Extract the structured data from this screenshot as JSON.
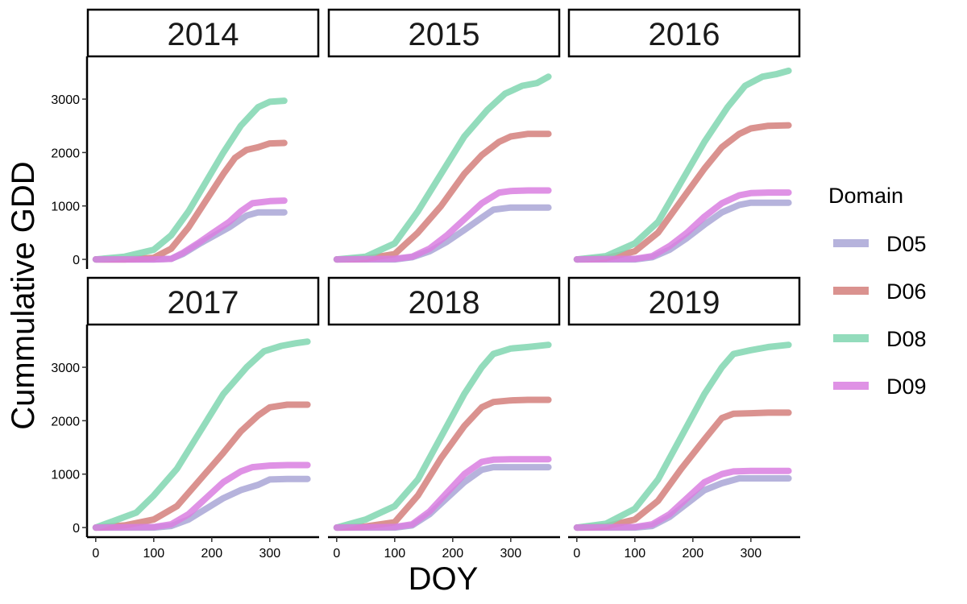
{
  "chart_data": {
    "type": "line",
    "facet_by": "year",
    "xlabel": "DOY",
    "ylabel": "Cummulative GDD",
    "xlim": [
      -15,
      385
    ],
    "ylim": [
      -180,
      3800
    ],
    "x_ticks": [
      0,
      100,
      200,
      300
    ],
    "y_ticks": [
      0,
      1000,
      2000,
      3000
    ],
    "grid": false,
    "legend": {
      "title": "Domain",
      "position": "right",
      "entries": [
        {
          "name": "D05",
          "color": "#a9a6d6"
        },
        {
          "name": "D06",
          "color": "#d47f7b"
        },
        {
          "name": "D08",
          "color": "#80d6b0"
        },
        {
          "name": "D09",
          "color": "#d97fe0"
        }
      ]
    },
    "panels": [
      {
        "title": "2014",
        "series": [
          {
            "name": "D05",
            "x": [
              0,
              100,
              130,
              150,
              180,
              200,
              230,
              260,
              280,
              300,
              325
            ],
            "y": [
              0,
              0,
              10,
              100,
              300,
              420,
              600,
              820,
              880,
              880,
              880
            ]
          },
          {
            "name": "D06",
            "x": [
              0,
              50,
              100,
              130,
              160,
              190,
              220,
              240,
              260,
              280,
              300,
              325
            ],
            "y": [
              0,
              0,
              30,
              200,
              600,
              1100,
              1600,
              1900,
              2050,
              2100,
              2170,
              2180
            ]
          },
          {
            "name": "D08",
            "x": [
              0,
              50,
              100,
              130,
              160,
              190,
              220,
              250,
              280,
              300,
              325
            ],
            "y": [
              0,
              50,
              180,
              450,
              900,
              1450,
              2000,
              2500,
              2850,
              2950,
              2970
            ]
          },
          {
            "name": "D09",
            "x": [
              0,
              100,
              130,
              150,
              180,
              200,
              230,
              250,
              270,
              300,
              325
            ],
            "y": [
              0,
              0,
              10,
              120,
              330,
              480,
              700,
              900,
              1050,
              1090,
              1100
            ]
          }
        ]
      },
      {
        "title": "2015",
        "series": [
          {
            "name": "D05",
            "x": [
              0,
              100,
              130,
              160,
              190,
              220,
              250,
              270,
              300,
              330,
              365
            ],
            "y": [
              0,
              0,
              40,
              150,
              330,
              550,
              780,
              930,
              970,
              970,
              970
            ]
          },
          {
            "name": "D06",
            "x": [
              0,
              50,
              100,
              140,
              180,
              220,
              250,
              280,
              300,
              330,
              365
            ],
            "y": [
              0,
              10,
              100,
              500,
              1000,
              1600,
              1950,
              2200,
              2300,
              2350,
              2350
            ]
          },
          {
            "name": "D08",
            "x": [
              0,
              50,
              100,
              140,
              180,
              220,
              260,
              290,
              320,
              345,
              365
            ],
            "y": [
              0,
              50,
              300,
              900,
              1600,
              2300,
              2800,
              3100,
              3250,
              3300,
              3420
            ]
          },
          {
            "name": "D09",
            "x": [
              0,
              100,
              130,
              160,
              190,
              220,
              250,
              280,
              300,
              330,
              365
            ],
            "y": [
              0,
              10,
              50,
              200,
              450,
              750,
              1050,
              1250,
              1280,
              1290,
              1290
            ]
          }
        ]
      },
      {
        "title": "2016",
        "series": [
          {
            "name": "D05",
            "x": [
              0,
              100,
              130,
              160,
              190,
              220,
              250,
              280,
              300,
              330,
              365
            ],
            "y": [
              0,
              0,
              40,
              180,
              400,
              650,
              880,
              1020,
              1060,
              1060,
              1060
            ]
          },
          {
            "name": "D06",
            "x": [
              0,
              50,
              100,
              140,
              180,
              220,
              250,
              280,
              300,
              330,
              365
            ],
            "y": [
              0,
              20,
              150,
              500,
              1100,
              1700,
              2100,
              2350,
              2450,
              2500,
              2510
            ]
          },
          {
            "name": "D08",
            "x": [
              0,
              50,
              100,
              140,
              180,
              220,
              260,
              290,
              320,
              345,
              365
            ],
            "y": [
              0,
              60,
              300,
              700,
              1450,
              2200,
              2850,
              3250,
              3420,
              3470,
              3530
            ]
          },
          {
            "name": "D09",
            "x": [
              0,
              100,
              130,
              160,
              190,
              220,
              250,
              280,
              300,
              330,
              365
            ],
            "y": [
              0,
              10,
              60,
              250,
              500,
              800,
              1050,
              1200,
              1240,
              1250,
              1250
            ]
          }
        ]
      },
      {
        "title": "2017",
        "series": [
          {
            "name": "D05",
            "x": [
              0,
              100,
              130,
              160,
              190,
              220,
              250,
              280,
              300,
              330,
              365
            ],
            "y": [
              0,
              0,
              30,
              150,
              350,
              550,
              700,
              800,
              900,
              910,
              910
            ]
          },
          {
            "name": "D06",
            "x": [
              0,
              50,
              100,
              140,
              180,
              220,
              250,
              280,
              300,
              330,
              365
            ],
            "y": [
              0,
              40,
              150,
              400,
              900,
              1400,
              1800,
              2100,
              2250,
              2300,
              2300
            ]
          },
          {
            "name": "D08",
            "x": [
              0,
              30,
              70,
              100,
              140,
              180,
              220,
              260,
              290,
              320,
              345,
              365
            ],
            "y": [
              0,
              120,
              280,
              600,
              1100,
              1800,
              2500,
              3000,
              3300,
              3400,
              3450,
              3480
            ]
          },
          {
            "name": "D09",
            "x": [
              0,
              100,
              130,
              160,
              190,
              220,
              250,
              270,
              300,
              330,
              365
            ],
            "y": [
              0,
              10,
              60,
              250,
              550,
              850,
              1050,
              1130,
              1160,
              1170,
              1170
            ]
          }
        ]
      },
      {
        "title": "2018",
        "series": [
          {
            "name": "D05",
            "x": [
              0,
              100,
              130,
              160,
              190,
              220,
              250,
              270,
              300,
              330,
              365
            ],
            "y": [
              0,
              0,
              40,
              250,
              550,
              850,
              1080,
              1130,
              1130,
              1130,
              1130
            ]
          },
          {
            "name": "D06",
            "x": [
              0,
              50,
              100,
              140,
              180,
              220,
              250,
              270,
              300,
              330,
              365
            ],
            "y": [
              0,
              20,
              100,
              600,
              1300,
              1900,
              2250,
              2350,
              2380,
              2390,
              2390
            ]
          },
          {
            "name": "D08",
            "x": [
              0,
              50,
              100,
              140,
              180,
              220,
              250,
              270,
              300,
              330,
              365
            ],
            "y": [
              0,
              150,
              400,
              900,
              1700,
              2500,
              3000,
              3250,
              3350,
              3380,
              3420
            ]
          },
          {
            "name": "D09",
            "x": [
              0,
              100,
              130,
              160,
              190,
              220,
              250,
              270,
              300,
              330,
              365
            ],
            "y": [
              0,
              10,
              60,
              300,
              650,
              1000,
              1230,
              1270,
              1280,
              1280,
              1280
            ]
          }
        ]
      },
      {
        "title": "2019",
        "series": [
          {
            "name": "D05",
            "x": [
              0,
              100,
              130,
              160,
              190,
              220,
              250,
              280,
              300,
              330,
              365
            ],
            "y": [
              0,
              0,
              30,
              200,
              450,
              700,
              830,
              920,
              920,
              920,
              920
            ]
          },
          {
            "name": "D06",
            "x": [
              0,
              50,
              100,
              140,
              180,
              220,
              250,
              270,
              300,
              330,
              365
            ],
            "y": [
              0,
              20,
              150,
              500,
              1100,
              1650,
              2050,
              2130,
              2140,
              2150,
              2150
            ]
          },
          {
            "name": "D08",
            "x": [
              0,
              50,
              100,
              140,
              180,
              220,
              250,
              270,
              300,
              330,
              365
            ],
            "y": [
              0,
              70,
              350,
              900,
              1700,
              2500,
              3000,
              3250,
              3320,
              3380,
              3420
            ]
          },
          {
            "name": "D09",
            "x": [
              0,
              100,
              130,
              160,
              190,
              220,
              250,
              270,
              300,
              330,
              365
            ],
            "y": [
              0,
              10,
              60,
              250,
              550,
              850,
              1000,
              1050,
              1060,
              1060,
              1060
            ]
          }
        ]
      }
    ]
  }
}
